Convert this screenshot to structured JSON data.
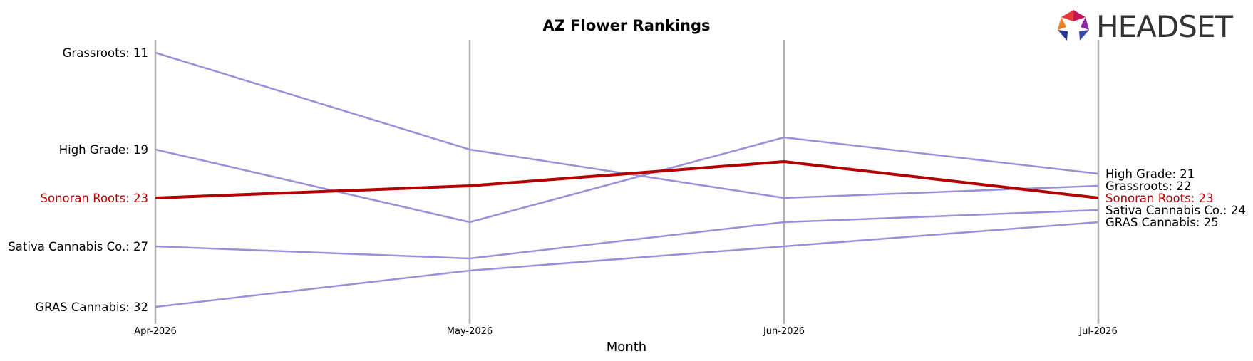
{
  "chart_data": {
    "type": "line",
    "title": "AZ Flower Rankings",
    "xlabel": "Month",
    "ylabel": "",
    "y_inverted": true,
    "ylim": [
      11,
      32
    ],
    "categories": [
      "Apr-2026",
      "May-2026",
      "Jun-2026",
      "Jul-2026"
    ],
    "series": [
      {
        "name": "Grassroots",
        "values": [
          11,
          19,
          23,
          22
        ],
        "color": "#9b8fd9",
        "highlight": false
      },
      {
        "name": "High Grade",
        "values": [
          19,
          25,
          18,
          21
        ],
        "color": "#9b8fd9",
        "highlight": false
      },
      {
        "name": "Sonoran Roots",
        "values": [
          23,
          22,
          20,
          23
        ],
        "color": "#b30000",
        "highlight": true
      },
      {
        "name": "Sativa Cannabis Co.",
        "values": [
          27,
          28,
          25,
          24
        ],
        "color": "#9b8fd9",
        "highlight": false
      },
      {
        "name": "GRAS Cannabis",
        "values": [
          32,
          29,
          27,
          25
        ],
        "color": "#9b8fd9",
        "highlight": false
      }
    ],
    "grid": false,
    "vertical_guides": true
  },
  "logo": {
    "text": "HEADSET"
  },
  "colors": {
    "highlight": "#b30000",
    "series": "#9b8fd9",
    "guide": "#b0b0b0"
  }
}
